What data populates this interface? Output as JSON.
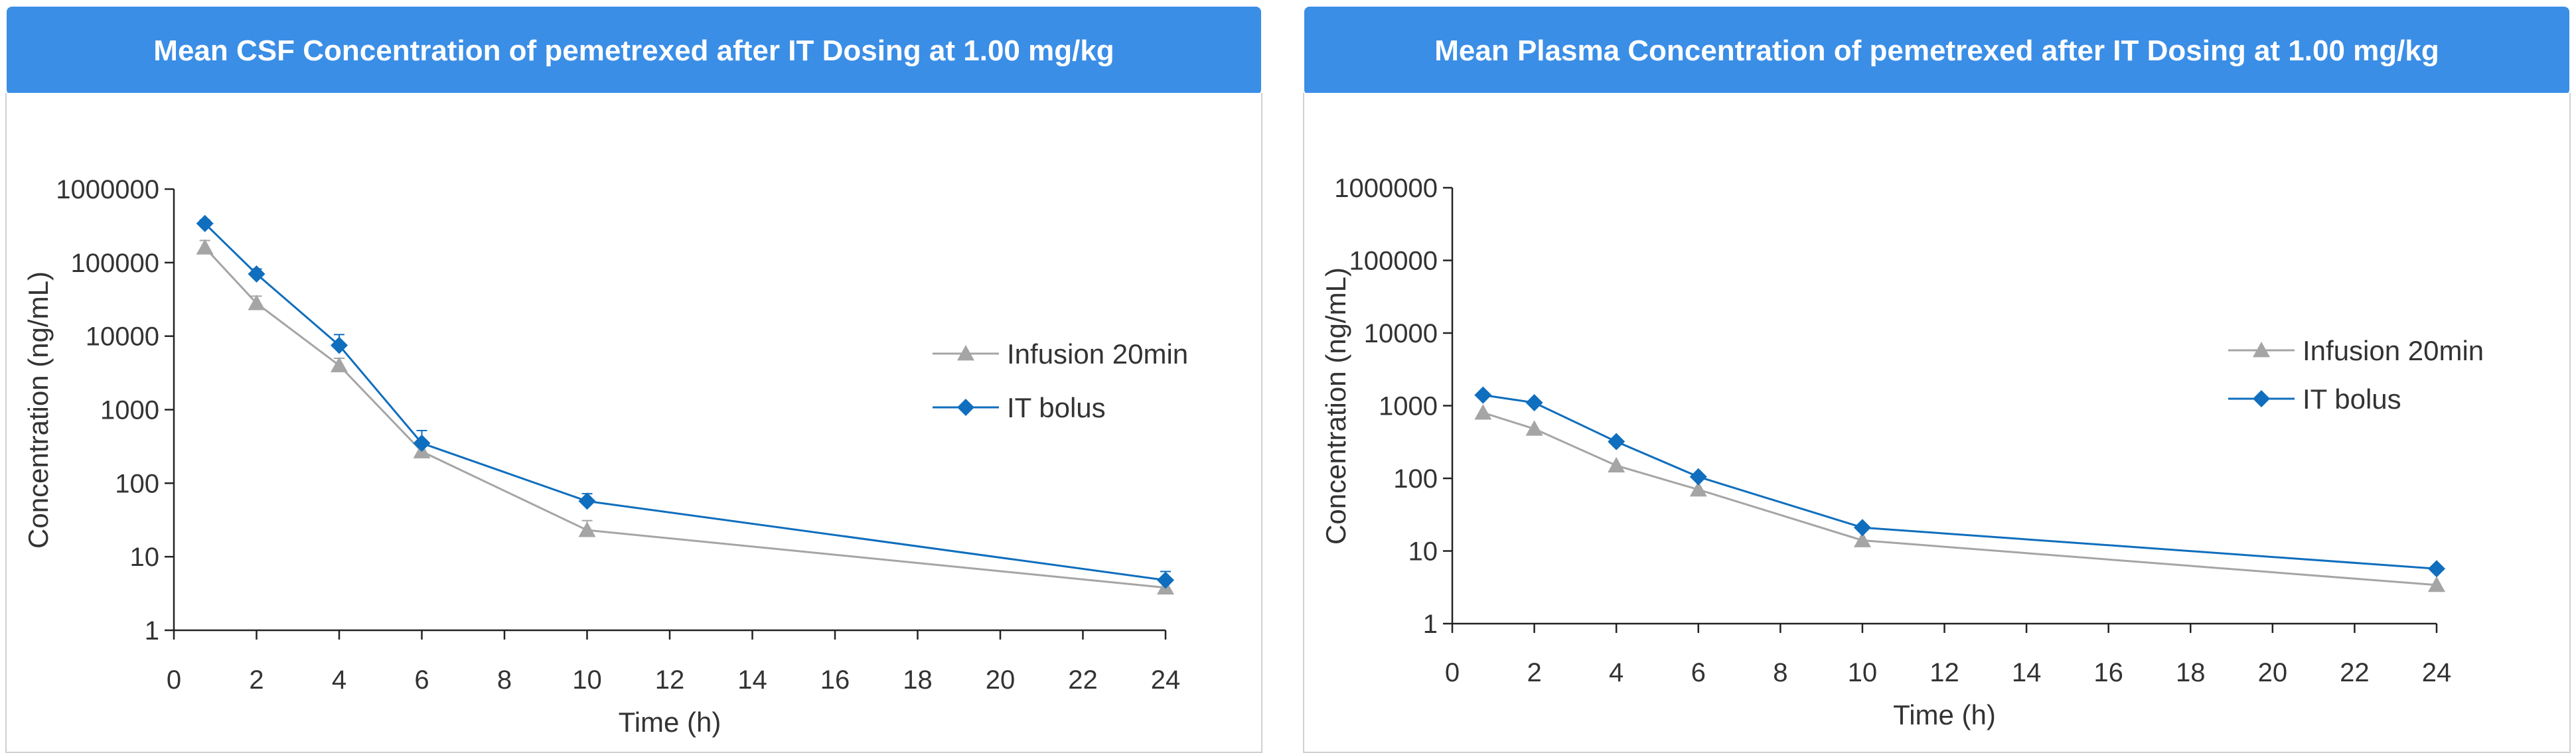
{
  "colors": {
    "banner": "#3a8ee6",
    "axis": "#222222",
    "infusion": "#a5a5a5",
    "bolus": "#0f6ebd"
  },
  "chart_data": [
    {
      "type": "line",
      "title": "Mean CSF Concentration of pemetrexed after IT Dosing at 1.00 mg/kg",
      "xlabel": "Time (h)",
      "ylabel": "Concentration (ng/mL)",
      "y_scale": "log",
      "xlim": [
        0,
        24
      ],
      "ylim": [
        1,
        1000000
      ],
      "x_ticks": [
        0,
        2,
        4,
        6,
        8,
        10,
        12,
        14,
        16,
        18,
        20,
        22,
        24
      ],
      "y_ticks": [
        1,
        10,
        100,
        1000,
        10000,
        100000,
        1000000
      ],
      "x_tick_labels": [
        "0",
        "2",
        "4",
        "6",
        "8",
        "10",
        "12",
        "14",
        "16",
        "18",
        "20",
        "22",
        "24"
      ],
      "y_tick_labels": [
        "1",
        "10",
        "100",
        "1000",
        "10000",
        "100000",
        "1000000"
      ],
      "legend_position": "right",
      "series": [
        {
          "name": "Infusion 20min",
          "marker": "triangle",
          "color": "#a5a5a5",
          "x": [
            0.75,
            2,
            4,
            6,
            10,
            24
          ],
          "y": [
            160000,
            28000,
            4000,
            270,
            23,
            3.8
          ],
          "error": [
            40000,
            7000,
            1000,
            70,
            8,
            0.8
          ]
        },
        {
          "name": "IT bolus",
          "marker": "diamond",
          "color": "#0f6ebd",
          "x": [
            0.75,
            2,
            4,
            6,
            10,
            24
          ],
          "y": [
            340000,
            70000,
            7500,
            350,
            57,
            4.8
          ],
          "error": [
            40000,
            12000,
            3000,
            170,
            15,
            1.5
          ]
        }
      ]
    },
    {
      "type": "line",
      "title": "Mean Plasma Concentration of pemetrexed after IT Dosing at 1.00 mg/kg",
      "xlabel": "Time (h)",
      "ylabel": "Concentration (ng/mL)",
      "y_scale": "log",
      "xlim": [
        0,
        24
      ],
      "ylim": [
        1,
        1000000
      ],
      "x_ticks": [
        0,
        2,
        4,
        6,
        8,
        10,
        12,
        14,
        16,
        18,
        20,
        22,
        24
      ],
      "y_ticks": [
        1,
        10,
        100,
        1000,
        10000,
        100000,
        1000000
      ],
      "x_tick_labels": [
        "0",
        "2",
        "4",
        "6",
        "8",
        "10",
        "12",
        "14",
        "16",
        "18",
        "20",
        "22",
        "24"
      ],
      "y_tick_labels": [
        "1",
        "10",
        "100",
        "1000",
        "10000",
        "100000",
        "1000000"
      ],
      "legend_position": "right",
      "series": [
        {
          "name": "Infusion 20min",
          "marker": "triangle",
          "color": "#a5a5a5",
          "x": [
            0.75,
            2,
            4,
            6,
            10,
            24
          ],
          "y": [
            800,
            480,
            150,
            70,
            14,
            3.4
          ],
          "error": []
        },
        {
          "name": "IT bolus",
          "marker": "diamond",
          "color": "#0f6ebd",
          "x": [
            0.75,
            2,
            4,
            6,
            10,
            24
          ],
          "y": [
            1400,
            1100,
            320,
            105,
            21,
            5.7
          ],
          "error": []
        }
      ]
    }
  ]
}
